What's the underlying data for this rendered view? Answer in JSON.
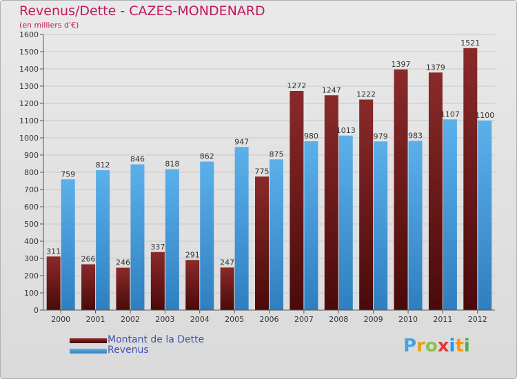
{
  "title": "Revenus/Dette - CAZES-MONDENARD",
  "subtitle": "(en milliers d'€)",
  "logo_text": "Proxiti",
  "colors": {
    "dette": "#6d1a1a",
    "revenus": "#4aa0e0",
    "axis": "#555555",
    "grid": "#c8c8c8",
    "title": "#c2185b",
    "legend_text": "#3f51b5"
  },
  "chart_data": {
    "type": "bar",
    "categories": [
      "2000",
      "2001",
      "2002",
      "2003",
      "2004",
      "2005",
      "2006",
      "2007",
      "2008",
      "2009",
      "2010",
      "2011",
      "2012"
    ],
    "series": [
      {
        "name": "Montant de la Dette",
        "values": [
          311,
          266,
          246,
          337,
          291,
          247,
          775,
          1272,
          1247,
          1222,
          1397,
          1379,
          1521
        ]
      },
      {
        "name": "Revenus",
        "values": [
          759,
          812,
          846,
          818,
          862,
          947,
          875,
          980,
          1013,
          979,
          983,
          1107,
          1100
        ]
      }
    ],
    "ylim": [
      0,
      1600
    ],
    "yticks": [
      0,
      100,
      200,
      300,
      400,
      500,
      600,
      700,
      800,
      900,
      1000,
      1100,
      1200,
      1300,
      1400,
      1500,
      1600
    ],
    "grid": true,
    "legend_position": "bottom-left"
  }
}
